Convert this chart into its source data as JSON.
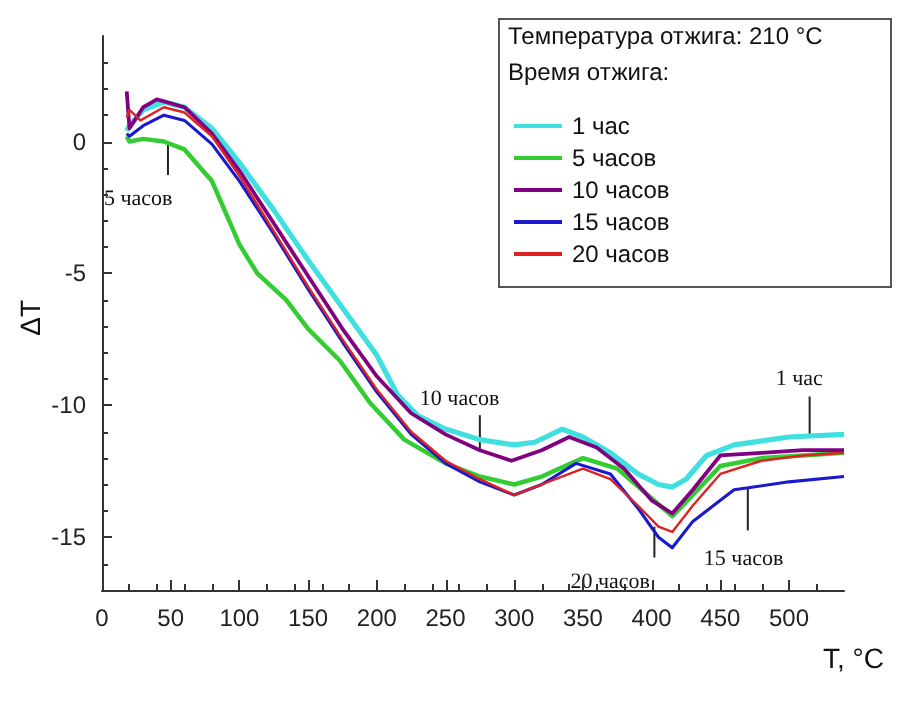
{
  "chart_data": {
    "type": "line",
    "xlabel": "T, °C",
    "ylabel": "ΔT",
    "legend_title": "Температура отжига: 210 °C\nВремя отжига:",
    "legend": "top right",
    "grid": false,
    "marker": "none",
    "line_style": "solid",
    "xlim": [
      0,
      540
    ],
    "xticks": [
      0,
      50,
      100,
      150,
      200,
      250,
      300,
      350,
      400,
      450,
      500
    ],
    "ylim": [
      -17,
      4
    ],
    "yticks": [
      -15,
      -10,
      -5,
      0
    ],
    "series": [
      {
        "name": "1 час",
        "color": "#40e0e0",
        "x": [
          18,
          20,
          30,
          45,
          60,
          80,
          100,
          125,
          150,
          175,
          200,
          215,
          230,
          250,
          275,
          300,
          315,
          335,
          350,
          370,
          390,
          405,
          415,
          425,
          440,
          460,
          500,
          540
        ],
        "values": [
          0.4,
          0.6,
          1.2,
          1.5,
          1.3,
          0.5,
          -0.8,
          -2.6,
          -4.5,
          -6.3,
          -8.1,
          -9.6,
          -10.4,
          -10.9,
          -11.3,
          -11.5,
          -11.4,
          -10.9,
          -11.2,
          -11.8,
          -12.6,
          -13.0,
          -13.1,
          -12.8,
          -11.9,
          -11.5,
          -11.2,
          -11.1
        ]
      },
      {
        "name": "5 часов",
        "color": "#33cc33",
        "x": [
          18,
          20,
          30,
          45,
          60,
          80,
          100,
          113,
          134,
          150,
          173,
          195,
          220,
          250,
          275,
          300,
          320,
          350,
          375,
          395,
          415,
          430,
          450,
          480,
          510,
          540
        ],
        "values": [
          0.2,
          0.0,
          0.1,
          0.0,
          -0.3,
          -1.5,
          -3.9,
          -5.0,
          -6.0,
          -7.1,
          -8.3,
          -9.9,
          -11.3,
          -12.2,
          -12.7,
          -13.0,
          -12.7,
          -12.0,
          -12.4,
          -13.3,
          -14.2,
          -13.4,
          -12.3,
          -12.0,
          -11.9,
          -11.8
        ]
      },
      {
        "name": "10 часов",
        "color": "#800080",
        "x": [
          18,
          20,
          30,
          40,
          60,
          80,
          100,
          125,
          150,
          175,
          200,
          225,
          250,
          275,
          298,
          320,
          340,
          360,
          380,
          400,
          415,
          430,
          450,
          480,
          510,
          540
        ],
        "values": [
          1.9,
          0.5,
          1.3,
          1.6,
          1.3,
          0.3,
          -1.1,
          -3.1,
          -5.1,
          -7.1,
          -8.9,
          -10.3,
          -11.1,
          -11.7,
          -12.1,
          -11.7,
          -11.2,
          -11.6,
          -12.4,
          -13.6,
          -14.1,
          -13.2,
          -11.9,
          -11.8,
          -11.7,
          -11.7
        ]
      },
      {
        "name": "15 часов",
        "color": "#1a1acc",
        "x": [
          18,
          20,
          30,
          45,
          60,
          80,
          100,
          125,
          150,
          175,
          200,
          225,
          250,
          275,
          300,
          320,
          345,
          370,
          390,
          405,
          415,
          430,
          460,
          500,
          540
        ],
        "values": [
          0.3,
          0.2,
          0.6,
          1.0,
          0.8,
          -0.1,
          -1.5,
          -3.5,
          -5.6,
          -7.6,
          -9.5,
          -11.1,
          -12.2,
          -12.9,
          -13.4,
          -13.0,
          -12.2,
          -12.6,
          -13.9,
          -15.0,
          -15.4,
          -14.4,
          -13.2,
          -12.9,
          -12.7
        ]
      },
      {
        "name": "20 часов",
        "color": "#dd2222",
        "x": [
          18,
          20,
          28,
          45,
          60,
          80,
          100,
          125,
          150,
          175,
          200,
          225,
          250,
          275,
          300,
          320,
          350,
          370,
          390,
          405,
          415,
          430,
          450,
          480,
          510,
          540
        ],
        "values": [
          0.9,
          1.2,
          0.8,
          1.3,
          1.1,
          0.2,
          -1.3,
          -3.4,
          -5.5,
          -7.5,
          -9.4,
          -11.0,
          -12.1,
          -12.8,
          -13.4,
          -13.0,
          -12.4,
          -12.8,
          -13.8,
          -14.6,
          -14.8,
          -13.8,
          -12.6,
          -12.1,
          -11.9,
          -11.8
        ]
      }
    ],
    "annotations": [
      {
        "text": "1 час",
        "x": 515,
        "y": -11.15
      },
      {
        "text": "5 часов",
        "x": 48,
        "y": -0.1
      },
      {
        "text": "10 часов",
        "x": 275,
        "y": -11.7
      },
      {
        "text": "15 часов",
        "x": 470,
        "y": -13.15
      },
      {
        "text": "20 часов",
        "x": 402,
        "y": -14.6
      }
    ]
  }
}
